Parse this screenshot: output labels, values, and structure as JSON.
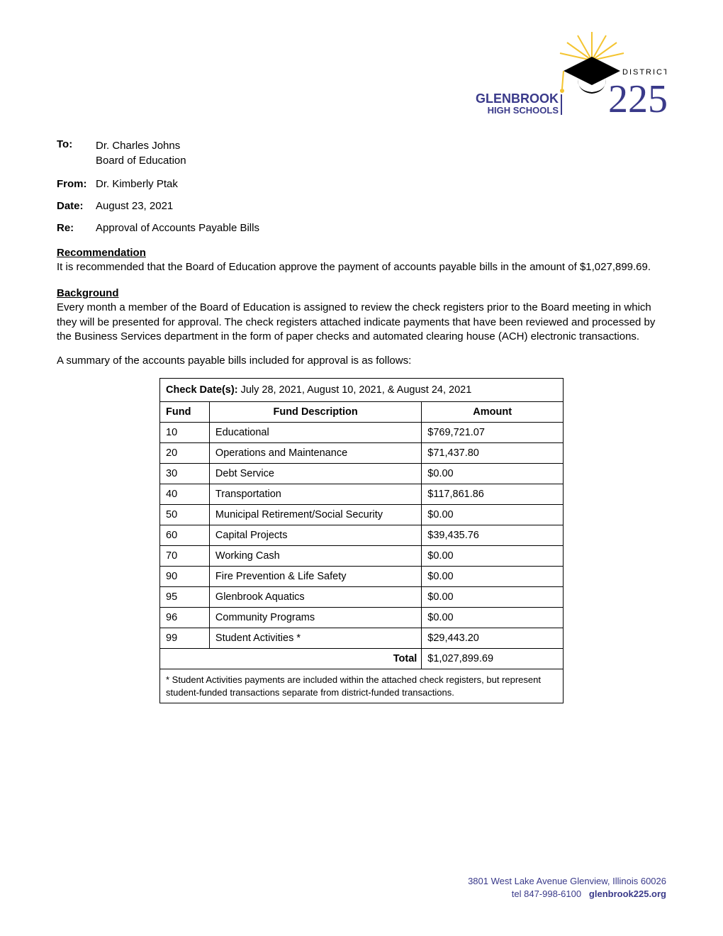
{
  "logo": {
    "text_top": "GLENBROOK",
    "text_bottom": "HIGH SCHOOLS",
    "text_right": "DISTRICT",
    "number": "225",
    "colors": {
      "blue": "#3a3a8a",
      "yellow": "#f4c430",
      "black": "#000000"
    }
  },
  "header": {
    "to_label": "To:",
    "to_value1": "Dr. Charles Johns",
    "to_value2": "Board of Education",
    "from_label": "From:",
    "from_value": "Dr. Kimberly Ptak",
    "date_label": "Date:",
    "date_value": "August 23, 2021",
    "re_label": "Re:",
    "re_value": "Approval of Accounts Payable Bills"
  },
  "recommendation": {
    "heading": "Recommendation",
    "text": "It is recommended that the Board of Education approve the payment of accounts payable bills in the amount of $1,027,899.69."
  },
  "background": {
    "heading": "Background",
    "para1": "Every month a member of the Board of Education is assigned to review the check registers prior to the Board meeting in which they will be presented for approval.  The check registers attached indicate payments that have been reviewed and processed by the Business Services department in the form of paper checks and automated clearing house (ACH) electronic transactions.",
    "para2": "A summary of the accounts payable bills included for approval is as follows:"
  },
  "table": {
    "check_dates_label": "Check Date(s): ",
    "check_dates_value": "July 28, 2021, August 10, 2021, & August 24, 2021",
    "columns": {
      "fund": "Fund",
      "description": "Fund Description",
      "amount": "Amount"
    },
    "rows": [
      {
        "fund": "10",
        "desc": "Educational",
        "amount": "$769,721.07"
      },
      {
        "fund": "20",
        "desc": "Operations and Maintenance",
        "amount": "$71,437.80"
      },
      {
        "fund": "30",
        "desc": "Debt Service",
        "amount": "$0.00"
      },
      {
        "fund": "40",
        "desc": "Transportation",
        "amount": "$117,861.86"
      },
      {
        "fund": "50",
        "desc": "Municipal Retirement/Social Security",
        "amount": "$0.00"
      },
      {
        "fund": "60",
        "desc": "Capital Projects",
        "amount": "$39,435.76"
      },
      {
        "fund": "70",
        "desc": "Working Cash",
        "amount": "$0.00"
      },
      {
        "fund": "90",
        "desc": "Fire Prevention & Life Safety",
        "amount": "$0.00"
      },
      {
        "fund": "95",
        "desc": "Glenbrook Aquatics",
        "amount": "$0.00"
      },
      {
        "fund": "96",
        "desc": "Community Programs",
        "amount": "$0.00"
      },
      {
        "fund": "99",
        "desc": "Student Activities *",
        "amount": "$29,443.20"
      }
    ],
    "total_label": "Total",
    "total_amount": "$1,027,899.69",
    "footnote": "* Student Activities payments are included within the attached check registers, but represent student-funded transactions separate from district-funded transactions."
  },
  "footer": {
    "address": "3801 West Lake Avenue   Glenview, Illinois  60026",
    "tel_prefix": "tel ",
    "tel": "847-998-6100",
    "website": "glenbrook225.org"
  }
}
